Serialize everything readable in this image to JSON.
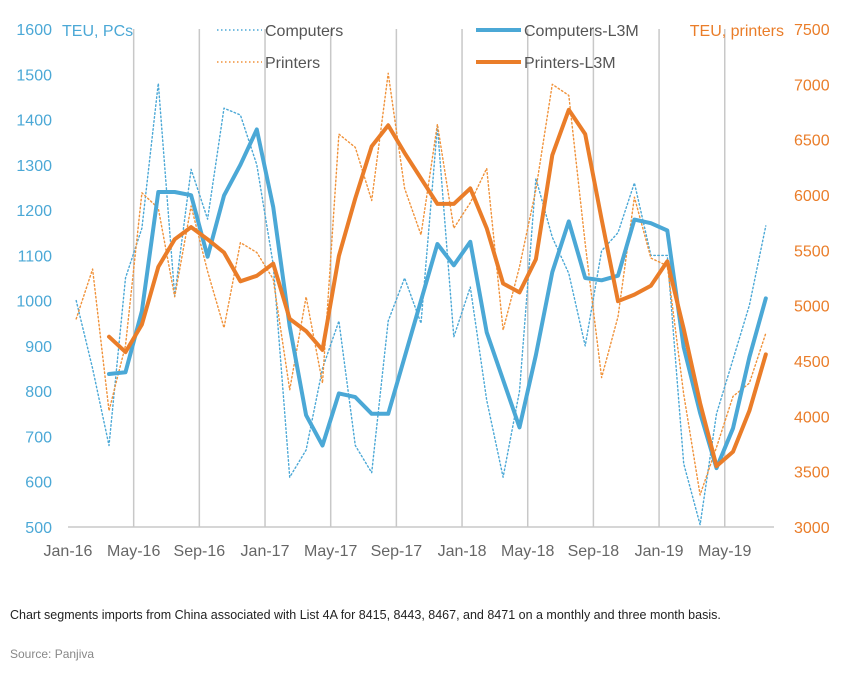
{
  "chart_data": {
    "type": "line",
    "x": [
      "Jan-16",
      "Feb-16",
      "Mar-16",
      "Apr-16",
      "May-16",
      "Jun-16",
      "Jul-16",
      "Aug-16",
      "Sep-16",
      "Oct-16",
      "Nov-16",
      "Dec-16",
      "Jan-17",
      "Feb-17",
      "Mar-17",
      "Apr-17",
      "May-17",
      "Jun-17",
      "Jul-17",
      "Aug-17",
      "Sep-17",
      "Oct-17",
      "Nov-17",
      "Dec-17",
      "Jan-18",
      "Feb-18",
      "Mar-18",
      "Apr-18",
      "May-18",
      "Jun-18",
      "Jul-18",
      "Aug-18",
      "Sep-18",
      "Oct-18",
      "Nov-18",
      "Dec-18",
      "Jan-19",
      "Feb-19",
      "Mar-19",
      "Apr-19",
      "May-19",
      "Jun-19",
      "Jul-19"
    ],
    "x_tick_labels": [
      "Jan-16",
      "May-16",
      "Sep-16",
      "Jan-17",
      "May-17",
      "Sep-17",
      "Jan-18",
      "May-18",
      "Sep-18",
      "Jan-19",
      "May-19"
    ],
    "y_left": {
      "label": "TEU, PCs",
      "range": [
        500,
        1600
      ],
      "ticks": [
        500,
        600,
        700,
        800,
        900,
        1000,
        1100,
        1200,
        1300,
        1400,
        1500,
        1600
      ]
    },
    "y_right": {
      "label": "TEU, printers",
      "range": [
        3000,
        7500
      ],
      "ticks": [
        3000,
        3500,
        4000,
        4500,
        5000,
        5500,
        6000,
        6500,
        7000,
        7500
      ]
    },
    "series": [
      {
        "name": "Computers",
        "axis": "left",
        "style": "dotted",
        "color": "#4ba8d6",
        "values": [
          1000,
          850,
          680,
          1050,
          1160,
          1480,
          1010,
          1290,
          1180,
          1425,
          1410,
          1300,
          1080,
          610,
          670,
          850,
          955,
          680,
          620,
          955,
          1050,
          950,
          1385,
          920,
          1030,
          780,
          610,
          800,
          1270,
          1140,
          1060,
          900,
          1110,
          1150,
          1260,
          1100,
          1100,
          640,
          505,
          750,
          870,
          990,
          1165
        ]
      },
      {
        "name": "Printers",
        "axis": "right",
        "style": "dotted",
        "color": "#f0923a",
        "values": [
          4880,
          5330,
          4050,
          4640,
          6020,
          5880,
          5080,
          5900,
          5310,
          4800,
          5570,
          5480,
          5240,
          4240,
          5080,
          4300,
          6550,
          6430,
          5950,
          7100,
          6060,
          5640,
          6640,
          5700,
          5930,
          6240,
          4780,
          5350,
          6050,
          7000,
          6900,
          5560,
          4350,
          4900,
          5980,
          5430,
          5360,
          4200,
          3290,
          3720,
          4180,
          4300,
          4750
        ]
      },
      {
        "name": "Computers-L3M",
        "axis": "left",
        "style": "solid",
        "color": "#4ba8d6",
        "values": [
          null,
          null,
          838,
          842,
          977,
          1240,
          1240,
          1233,
          1097,
          1232,
          1300,
          1378,
          1207,
          943,
          747,
          680,
          795,
          787,
          750,
          750,
          875,
          1000,
          1125,
          1078,
          1130,
          930,
          825,
          720,
          880,
          1063,
          1175,
          1050,
          1045,
          1055,
          1179,
          1171,
          1155,
          897,
          752,
          630,
          718,
          875,
          1005
        ]
      },
      {
        "name": "Printers-L3M",
        "axis": "right",
        "style": "solid",
        "color": "#ea7d29",
        "values": [
          null,
          null,
          4720,
          4580,
          4830,
          5350,
          5600,
          5710,
          5600,
          5480,
          5220,
          5270,
          5380,
          4880,
          4770,
          4600,
          5450,
          5970,
          6440,
          6630,
          6380,
          6150,
          5920,
          5920,
          6060,
          5700,
          5200,
          5120,
          5420,
          6360,
          6770,
          6550,
          5780,
          5040,
          5100,
          5180,
          5400,
          4790,
          4120,
          3550,
          3680,
          4050,
          4560
        ]
      }
    ],
    "legend": [
      {
        "label": "Computers",
        "series": 0,
        "placement": "top-left"
      },
      {
        "label": "Printers",
        "series": 1,
        "placement": "top-left"
      },
      {
        "label": "Computers-L3M",
        "series": 2,
        "placement": "top-right"
      },
      {
        "label": "Printers-L3M",
        "series": 3,
        "placement": "top-right"
      }
    ],
    "vertical_gridlines": true,
    "horizontal_gridlines": false
  },
  "caption": "Chart segments imports from China associated with List 4A for 8415, 8443, 8467, and 8471 on a monthly and three month basis.",
  "source": "Source: Panjiva",
  "colors": {
    "computers": "#4ba8d6",
    "printers": "#ea7d29",
    "grid": "#c8c8c8"
  }
}
